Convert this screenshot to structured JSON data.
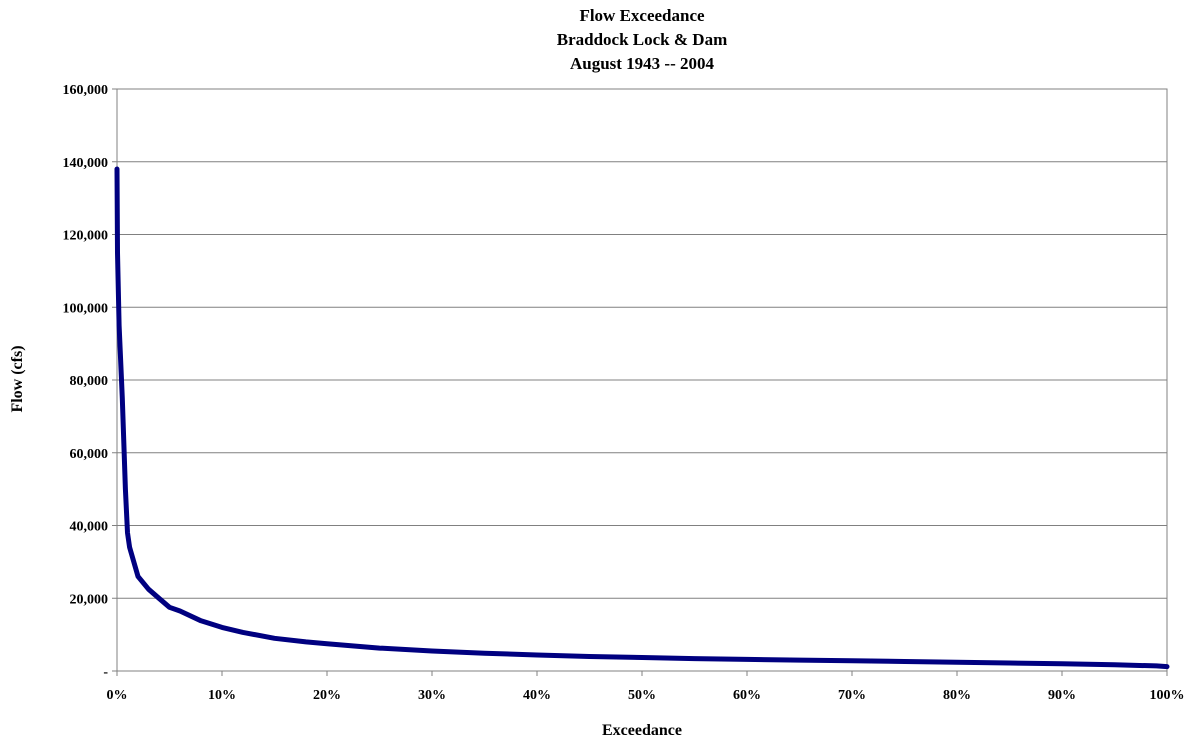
{
  "chart_data": {
    "type": "line",
    "title": [
      "Flow Exceedance",
      "Braddock Lock & Dam",
      "August 1943 -- 2004"
    ],
    "xlabel": "Exceedance",
    "ylabel": "Flow (cfs)",
    "xlim": [
      0,
      100
    ],
    "ylim": [
      0,
      160000
    ],
    "x_ticks": [
      0,
      10,
      20,
      30,
      40,
      50,
      60,
      70,
      80,
      90,
      100
    ],
    "x_tick_labels": [
      "0%",
      "10%",
      "20%",
      "30%",
      "40%",
      "50%",
      "60%",
      "70%",
      "80%",
      "90%",
      "100%"
    ],
    "y_ticks": [
      0,
      20000,
      40000,
      60000,
      80000,
      100000,
      120000,
      140000,
      160000
    ],
    "y_tick_labels": [
      "-",
      "20,000",
      "40,000",
      "60,000",
      "80,000",
      "100,000",
      "120,000",
      "140,000",
      "160,000"
    ],
    "grid": "horizontal",
    "legend": "none",
    "series": [
      {
        "color": "#000080",
        "x": [
          0,
          0.05,
          0.2,
          0.5,
          0.8,
          1.0,
          1.2,
          2,
          3,
          4,
          5,
          6,
          8,
          10,
          12,
          15,
          18,
          20,
          25,
          30,
          35,
          40,
          45,
          50,
          55,
          60,
          65,
          70,
          75,
          80,
          85,
          90,
          95,
          99,
          100
        ],
        "y": [
          138000,
          115000,
          95000,
          75000,
          50000,
          38000,
          34000,
          26000,
          22500,
          20000,
          17500,
          16500,
          13800,
          12000,
          10600,
          9000,
          8000,
          7500,
          6300,
          5500,
          4900,
          4400,
          4000,
          3700,
          3400,
          3200,
          3000,
          2800,
          2600,
          2400,
          2200,
          2000,
          1700,
          1400,
          1200
        ]
      }
    ]
  }
}
